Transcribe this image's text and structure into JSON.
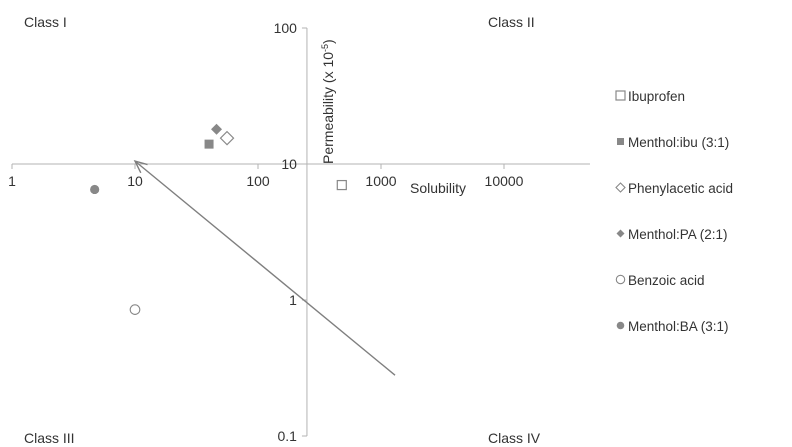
{
  "chart_data": {
    "type": "scatter",
    "title": "",
    "x_axis": {
      "label": "Solubility",
      "scale": "log",
      "range": [
        1,
        50000
      ],
      "ticks": [
        1,
        10,
        100,
        1000,
        10000
      ],
      "tick_labels": [
        "1",
        "10",
        "100",
        "1000",
        "10000"
      ],
      "crosses_y_at": 10
    },
    "y_axis": {
      "label_base": "Permeability (x 10",
      "label_exp": "-5",
      "label_close": ")",
      "scale": "log",
      "range": [
        0.1,
        100
      ],
      "ticks": [
        0.1,
        1,
        10,
        100
      ],
      "tick_labels": [
        "0.1",
        "1",
        "10",
        "100"
      ],
      "crosses_x_at": 250
    },
    "quadrant_labels": {
      "top_left": "Class I",
      "top_right": "Class II",
      "bottom_left": "Class III",
      "bottom_right": "Class IV"
    },
    "series": [
      {
        "name": "Ibuprofen",
        "marker": "square-open",
        "points": [
          {
            "x": 480,
            "y": 7
          }
        ]
      },
      {
        "name": "Menthol:ibu (3:1)",
        "marker": "square-filled",
        "points": [
          {
            "x": 40,
            "y": 14
          }
        ]
      },
      {
        "name": "Phenylacetic acid",
        "marker": "diamond-open",
        "points": [
          {
            "x": 56,
            "y": 15.5
          }
        ]
      },
      {
        "name": "Menthol:PA (2:1)",
        "marker": "diamond-filled",
        "points": [
          {
            "x": 46,
            "y": 18
          }
        ]
      },
      {
        "name": "Benzoic acid",
        "marker": "circle-open",
        "points": [
          {
            "x": 10,
            "y": 0.85
          }
        ]
      },
      {
        "name": "Menthol:BA (3:1)",
        "marker": "circle-filled",
        "points": [
          {
            "x": 4.7,
            "y": 6.5
          }
        ]
      }
    ],
    "arrow": {
      "from": {
        "x": 1300,
        "y": 0.28
      },
      "to": {
        "x": 10,
        "y": 10.5
      }
    },
    "legend_position": "right",
    "grid": false,
    "colors": {
      "marker": "#888888",
      "axis": "#b3b3b3",
      "arrow": "#7f7f7f",
      "text": "#333333"
    }
  }
}
